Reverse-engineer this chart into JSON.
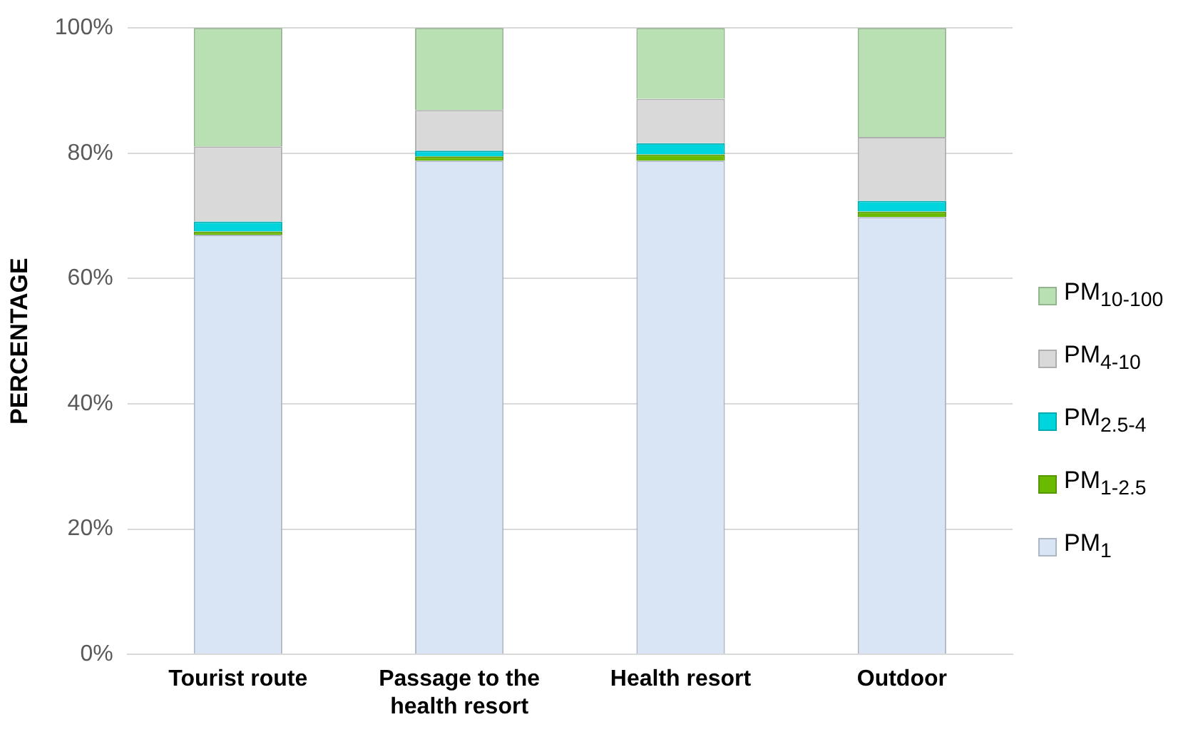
{
  "chart_data": {
    "type": "bar",
    "stacked": true,
    "ylabel": "PERCENTAGE",
    "categories": [
      "Tourist route",
      "Passage to the health resort",
      "Health resort",
      "Outdoor"
    ],
    "series": [
      {
        "name": "PM$_{1}$",
        "color": "#d9e4f4",
        "values": [
          67.0,
          78.8,
          78.8,
          69.8
        ]
      },
      {
        "name": "PM$_{1-2.5}$",
        "color": "#6aba00",
        "values": [
          0.5,
          0.7,
          1.0,
          0.9
        ]
      },
      {
        "name": "PM$_{2.5-4}$",
        "color": "#00d4dc",
        "values": [
          1.6,
          0.9,
          1.8,
          1.7
        ]
      },
      {
        "name": "PM$_{4-10}$",
        "color": "#d9d9d9",
        "values": [
          12.0,
          6.5,
          7.1,
          10.2
        ]
      },
      {
        "name": "PM$_{10-100}$",
        "color": "#b9e0b3",
        "values": [
          18.9,
          13.1,
          11.3,
          17.4
        ]
      }
    ],
    "ylim": [
      0,
      100
    ],
    "yticks": [
      {
        "value": 0,
        "label": "0%"
      },
      {
        "value": 20,
        "label": "20%"
      },
      {
        "value": 40,
        "label": "40%"
      },
      {
        "value": 60,
        "label": "60%"
      },
      {
        "value": 80,
        "label": "80%"
      },
      {
        "value": 100,
        "label": "100%"
      }
    ],
    "grid": "y",
    "legend": "right"
  }
}
